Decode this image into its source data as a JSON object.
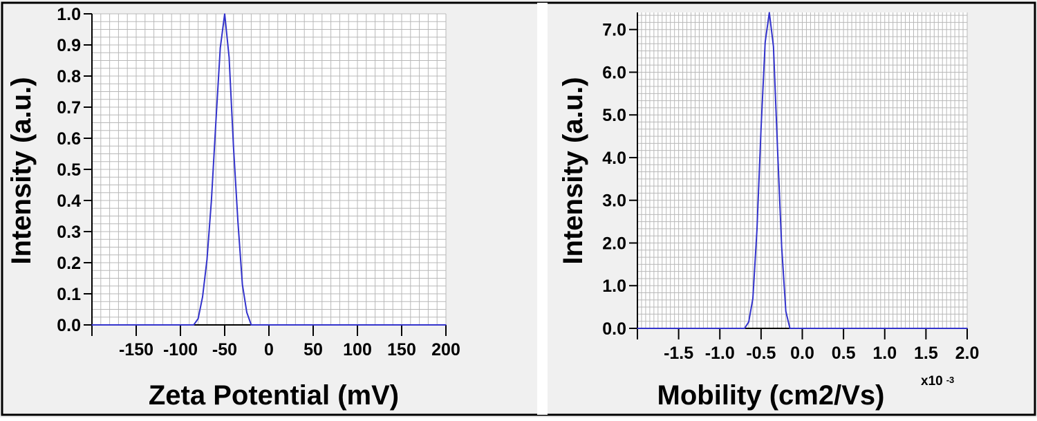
{
  "style": {
    "background": "#F0F0F0",
    "plot_background": "#FFFFFF",
    "grid_color": "#B8B8B8",
    "line_color": "#3333CC",
    "axis_color": "#000000",
    "border_color": "#000000"
  },
  "chart_data": [
    {
      "type": "line",
      "title": "",
      "xlabel": "Zeta Potential (mV)",
      "ylabel": "Intensity (a.u.)",
      "xlim": [
        -200,
        200
      ],
      "ylim": [
        0,
        1.0
      ],
      "x_ticks": [
        -150,
        -100,
        -50,
        0,
        50,
        100,
        150,
        200
      ],
      "x_tick_labels": [
        "-150",
        "-100",
        "-50",
        "0",
        "50",
        "100",
        "150",
        "200"
      ],
      "y_ticks": [
        0.0,
        0.1,
        0.2,
        0.3,
        0.4,
        0.5,
        0.6,
        0.7,
        0.8,
        0.9,
        1.0
      ],
      "y_tick_labels": [
        "0.0",
        "0.1",
        "0.2",
        "0.3",
        "0.4",
        "0.5",
        "0.6",
        "0.7",
        "0.8",
        "0.9",
        "1.0"
      ],
      "x_multiplier": "",
      "grid": true,
      "series": [
        {
          "name": "",
          "x": [
            -200,
            -85,
            -80,
            -75,
            -70,
            -65,
            -60,
            -55,
            -50,
            -45,
            -40,
            -35,
            -30,
            -25,
            -20,
            200
          ],
          "y": [
            0,
            0,
            0.02,
            0.09,
            0.21,
            0.4,
            0.65,
            0.89,
            1.0,
            0.86,
            0.57,
            0.33,
            0.13,
            0.04,
            0,
            0
          ]
        }
      ]
    },
    {
      "type": "line",
      "title": "",
      "xlabel": "Mobility (cm2/Vs)",
      "ylabel": "Intensity (a.u.)",
      "xlim": [
        -2.0,
        2.0
      ],
      "ylim": [
        0,
        7.4
      ],
      "x_ticks": [
        -1.5,
        -1.0,
        -0.5,
        0.0,
        0.5,
        1.0,
        1.5,
        2.0
      ],
      "x_tick_labels": [
        "-1.5",
        "-1.0",
        "-0.5",
        "0.0",
        "0.5",
        "1.0",
        "1.5",
        "2.0"
      ],
      "y_ticks": [
        0,
        1,
        2,
        3,
        4,
        5,
        6,
        7
      ],
      "y_tick_labels": [
        "0.0",
        "1.0",
        "2.0",
        "3.0",
        "4.0",
        "5.0",
        "6.0",
        "7.0"
      ],
      "x_multiplier": "x10",
      "x_multiplier_exp": "-3",
      "grid": true,
      "series": [
        {
          "name": "",
          "x": [
            -2.0,
            -0.7,
            -0.65,
            -0.6,
            -0.55,
            -0.5,
            -0.45,
            -0.4,
            -0.35,
            -0.3,
            -0.25,
            -0.2,
            -0.15,
            2.0
          ],
          "y": [
            0,
            0,
            0.15,
            0.7,
            2.3,
            4.7,
            6.7,
            7.4,
            6.6,
            4.2,
            1.9,
            0.4,
            0,
            0
          ]
        }
      ]
    }
  ]
}
